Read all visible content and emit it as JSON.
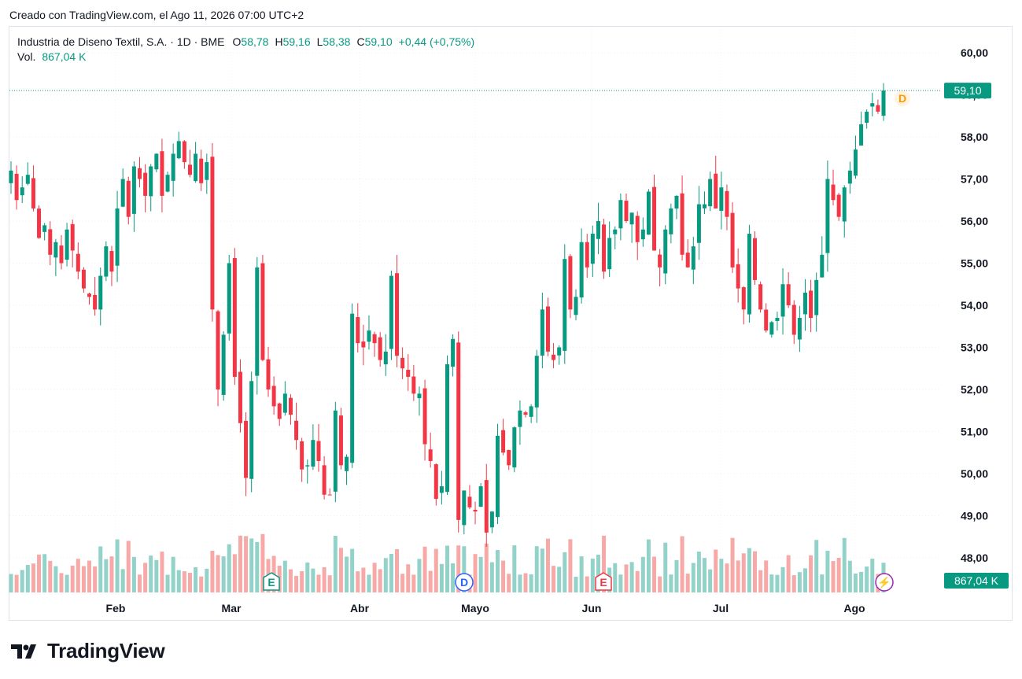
{
  "header": {
    "created_text": "Creado con TradingView.com, el Ago 11, 2026 07:00 UTC+2"
  },
  "legend": {
    "symbol": "Industria de Diseno Textil, S.A. · 1D · BME",
    "open_label": "O",
    "open": "58,78",
    "high_label": "H",
    "high": "59,16",
    "low_label": "L",
    "low": "58,38",
    "close_label": "C",
    "close": "59,10",
    "change": "+0,44 (+0,75%)",
    "vol_label": "Vol.",
    "vol": "867,04 K"
  },
  "logo": {
    "text": "TradingView",
    "icon": "tradingview-logo-icon"
  },
  "colors": {
    "up": "#089981",
    "down": "#f23645",
    "vol_up": "#92d2c8",
    "vol_down": "#f7a9a7",
    "grid": "#e0e3eb"
  },
  "chart_data": {
    "type": "candlestick",
    "ylim": [
      47.7,
      60.6
    ],
    "y_ticks": [
      "48,00",
      "49,00",
      "50,00",
      "51,00",
      "52,00",
      "53,00",
      "54,00",
      "55,00",
      "56,00",
      "57,00",
      "58,00",
      "59,00",
      "60,00"
    ],
    "x_ticks": [
      "Feb",
      "Mar",
      "Abr",
      "Mayo",
      "Jun",
      "Jul",
      "Ago"
    ],
    "last_price_label": "59,10",
    "last_volume_label": "867,04 K",
    "event_markers": [
      {
        "letter": "E",
        "color": "#089981",
        "date_index": 46
      },
      {
        "letter": "D",
        "color": "#2962ff",
        "date_index": 81
      },
      {
        "letter": "E",
        "color": "#f23645",
        "date_index": 106
      },
      {
        "letter": "D",
        "color": "#ff9800",
        "date_index": 157
      },
      {
        "letter": "⚡",
        "color": "#9c27b0",
        "date_index": 157
      }
    ],
    "closes": [
      57.2,
      56.5,
      56.8,
      57.1,
      56.3,
      55.6,
      55.9,
      55.2,
      55.5,
      55.0,
      55.8,
      55.3,
      54.8,
      54.4,
      54.2,
      53.9,
      54.7,
      55.4,
      54.8,
      56.3,
      57.0,
      56.1,
      57.3,
      57.0,
      56.6,
      57.3,
      57.6,
      56.6,
      57.1,
      57.6,
      57.9,
      57.4,
      57.1,
      57.6,
      56.9,
      57.4,
      53.9,
      52.0,
      53.3,
      55.0,
      52.3,
      51.2,
      49.9,
      52.2,
      54.9,
      52.7,
      52.0,
      51.6,
      51.3,
      51.9,
      51.4,
      50.8,
      50.1,
      50.2,
      50.8,
      50.3,
      49.5,
      49.5,
      51.5,
      50.2,
      50.4,
      53.8,
      53.1,
      53.0,
      53.4,
      53.1,
      52.7,
      52.9,
      54.7,
      52.8,
      52.5,
      52.3,
      51.9,
      51.9,
      50.7,
      50.3,
      49.4,
      49.7,
      52.6,
      53.2,
      48.9,
      49.6,
      49.2,
      49.1,
      49.7,
      48.6,
      49.1,
      50.9,
      50.5,
      50.2,
      51.1,
      51.5,
      51.4,
      51.6,
      52.8,
      53.9,
      52.9,
      52.7,
      53.0,
      55.1,
      53.9,
      54.2,
      55.5,
      54.9,
      55.7,
      56.0,
      54.8,
      55.6,
      55.8,
      56.5,
      56.0,
      56.2,
      55.5,
      55.8,
      56.7,
      55.3,
      54.9,
      55.8,
      56.3,
      56.6,
      55.2,
      54.9,
      55.4,
      56.4,
      56.4,
      57.0,
      56.3,
      56.8,
      56.1,
      54.9,
      54.4,
      53.9,
      55.7,
      54.6,
      53.9,
      53.4,
      53.6,
      53.7,
      54.5,
      54.0,
      53.3,
      53.7,
      54.3,
      53.7,
      54.6,
      55.2,
      57.0,
      56.5,
      56.1,
      56.8,
      57.2,
      57.7,
      58.3,
      58.6,
      58.8,
      58.6,
      59.1
    ]
  }
}
